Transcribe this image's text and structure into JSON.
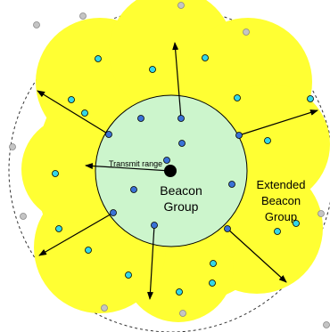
{
  "labels": {
    "transmit_range": "Transmit range",
    "beacon_group_line1": "Beacon",
    "beacon_group_line2": "Group",
    "extended_line1": "Extended",
    "extended_line2": "Beacon",
    "extended_line3": "Group"
  },
  "colors": {
    "extended_fill": "#ffff33",
    "beacon_fill": "#ccf5cc",
    "inner_node": "#3a72d6",
    "outer_node": "#33d6e6",
    "far_node": "#c4c4c4",
    "center_node": "#000000"
  }
}
